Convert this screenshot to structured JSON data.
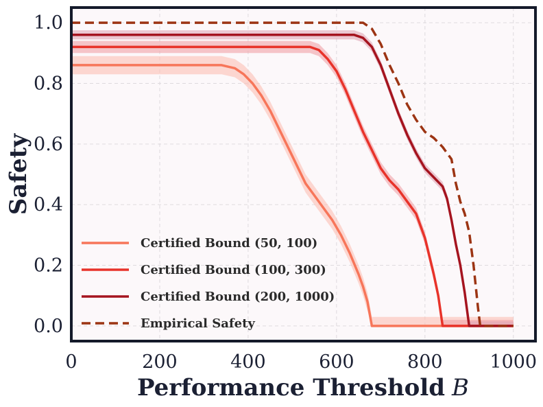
{
  "chart_data": {
    "type": "line",
    "xlabel": "Performance Threshold",
    "xlabel_var": "B",
    "ylabel": "Safety",
    "xlim": [
      0,
      1050
    ],
    "ylim": [
      -0.05,
      1.05
    ],
    "xticks": [
      0,
      200,
      400,
      600,
      800,
      1000
    ],
    "yticks": [
      0.0,
      0.2,
      0.4,
      0.6,
      0.8,
      1.0
    ],
    "xtick_labels": [
      "0",
      "200",
      "400",
      "600",
      "800",
      "1000"
    ],
    "ytick_labels": [
      "0.0",
      "0.2",
      "0.4",
      "0.6",
      "0.8",
      "1.0"
    ],
    "grid": true,
    "legend_position": "lower-left",
    "background": "#fcf8fa",
    "series": [
      {
        "name": "Certified Bound (50, 100)",
        "color": "#f7765a",
        "band_color": "#fcc0b4",
        "dashed": false,
        "x": [
          0,
          340,
          370,
          390,
          410,
          430,
          450,
          470,
          490,
          510,
          530,
          550,
          570,
          590,
          610,
          630,
          650,
          660,
          670,
          680,
          1000
        ],
        "y": [
          0.86,
          0.86,
          0.85,
          0.83,
          0.8,
          0.76,
          0.71,
          0.65,
          0.59,
          0.53,
          0.47,
          0.43,
          0.39,
          0.35,
          0.3,
          0.24,
          0.17,
          0.13,
          0.08,
          0.0,
          0.0
        ],
        "band": 0.03
      },
      {
        "name": "Certified Bound (100, 300)",
        "color": "#e8332a",
        "band_color": "#f0a1a6",
        "dashed": false,
        "x": [
          0,
          540,
          560,
          580,
          600,
          620,
          640,
          660,
          680,
          700,
          720,
          740,
          760,
          780,
          800,
          810,
          820,
          830,
          840,
          1000
        ],
        "y": [
          0.92,
          0.92,
          0.91,
          0.88,
          0.84,
          0.78,
          0.71,
          0.64,
          0.58,
          0.52,
          0.48,
          0.45,
          0.41,
          0.37,
          0.29,
          0.23,
          0.17,
          0.1,
          0.0,
          0.0
        ],
        "band": 0.02
      },
      {
        "name": "Certified Bound (200, 1000)",
        "color": "#a5141f",
        "band_color": "#e0a6b5",
        "dashed": false,
        "x": [
          0,
          640,
          660,
          680,
          700,
          720,
          740,
          760,
          780,
          800,
          820,
          840,
          850,
          860,
          870,
          880,
          890,
          900,
          1000
        ],
        "y": [
          0.96,
          0.96,
          0.95,
          0.92,
          0.86,
          0.78,
          0.7,
          0.63,
          0.57,
          0.52,
          0.49,
          0.46,
          0.42,
          0.35,
          0.27,
          0.2,
          0.11,
          0.0,
          0.0
        ],
        "band": 0.015
      },
      {
        "name": "Empirical Safety",
        "color": "#9c3413",
        "band_color": null,
        "dashed": true,
        "x": [
          0,
          660,
          680,
          700,
          720,
          740,
          760,
          780,
          800,
          820,
          840,
          860,
          870,
          880,
          890,
          900,
          910,
          920,
          925,
          1000
        ],
        "y": [
          1.0,
          1.0,
          0.98,
          0.93,
          0.86,
          0.8,
          0.73,
          0.68,
          0.64,
          0.62,
          0.59,
          0.55,
          0.47,
          0.41,
          0.37,
          0.31,
          0.2,
          0.06,
          0.0,
          0.0
        ],
        "band": 0
      }
    ]
  }
}
